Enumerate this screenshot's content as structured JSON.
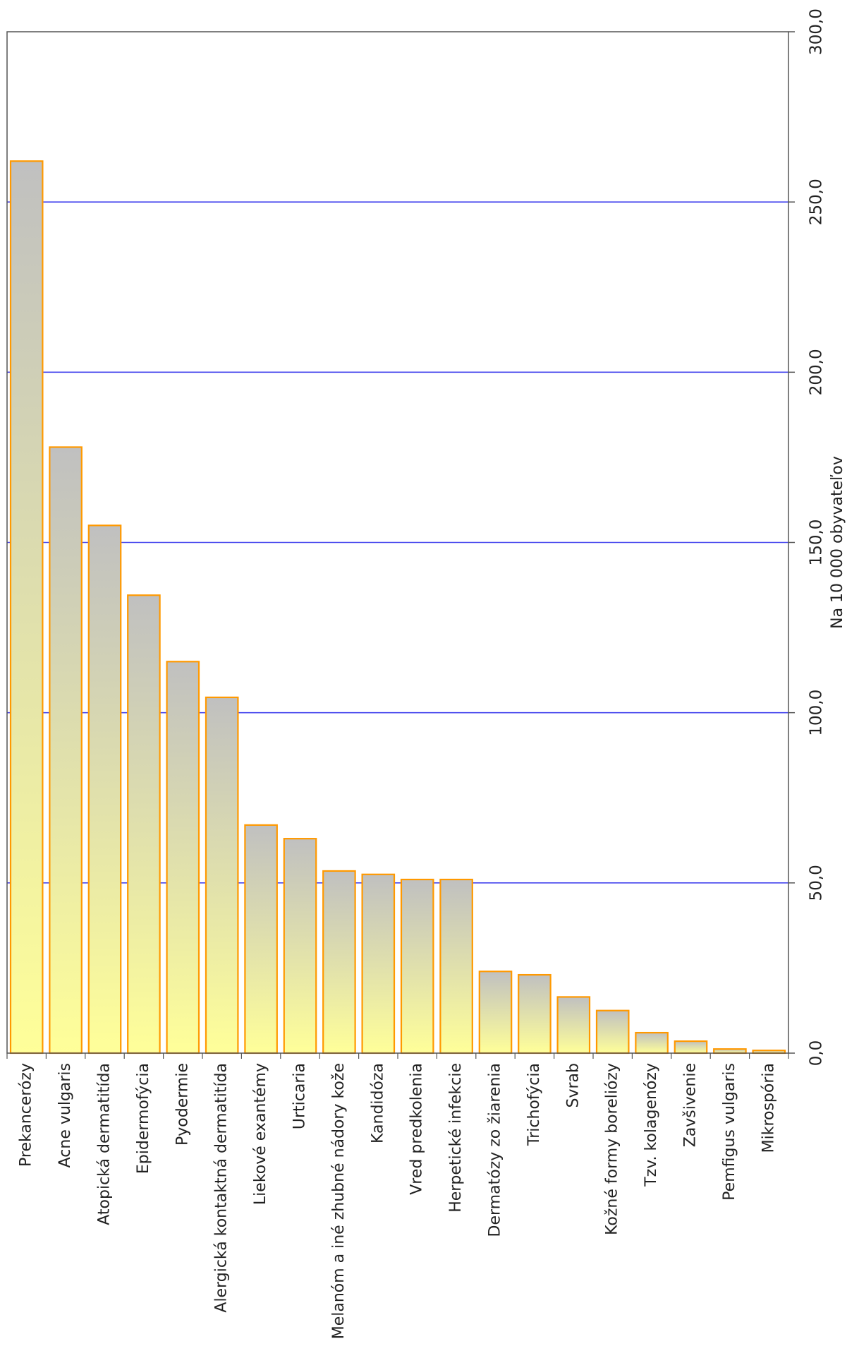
{
  "chart_data": {
    "type": "bar",
    "orientation": "vertical",
    "categories": [
      "Prekancerózy",
      "Acne vulgaris",
      "Atopická dermatitída",
      "Epidermofýcia",
      "Pyodermie",
      "Alergická kontaktná dermatitída",
      "Liekové exantémy",
      "Urticaria",
      "Melanóm a iné zhubné nádory kože",
      "Kandidóza",
      "Vred predkolenia",
      "Herpetické infekcie",
      "Dermatózy zo žiarenia",
      "Trichofýcia",
      "Svrab",
      "Kožné formy boreliózy",
      "Tzv. kolagenózy",
      "Zavšivenie",
      "Pemfigus vulgaris",
      "Mikrospória"
    ],
    "values": [
      262,
      178,
      155,
      134.5,
      115,
      104.5,
      67,
      63,
      53.5,
      52.5,
      51,
      51,
      24,
      23,
      16.5,
      12.5,
      6,
      3.5,
      1.2,
      0.8
    ],
    "ylabel": "Na 10 000 obyvateľov",
    "xlabel": "",
    "ylim": [
      0,
      300
    ],
    "y_ticks": [
      "0,0",
      "50,0",
      "100,0",
      "150,0",
      "200,0",
      "250,0",
      "300,0"
    ],
    "grid": true,
    "colors": {
      "bar_fill_top": "#c0c0c0",
      "bar_fill_bottom": "#ffff99",
      "bar_stroke": "#ff9900",
      "grid": "#4444ee",
      "axis": "#555555"
    }
  }
}
